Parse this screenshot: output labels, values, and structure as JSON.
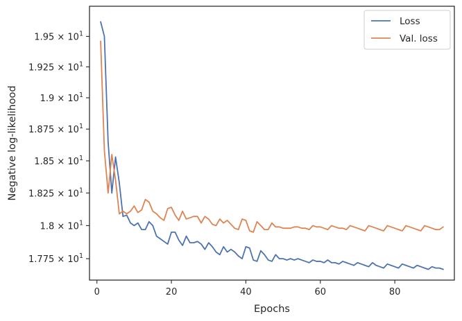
{
  "chart_data": {
    "type": "line",
    "xlabel": "Epochs",
    "ylabel": "Negative log-likelihood",
    "xlim": [
      -2,
      96
    ],
    "ylim": [
      17.59,
      19.75
    ],
    "yscale": "log",
    "grid": false,
    "legend_position": "top-right",
    "x_ticks": [
      {
        "value": 0,
        "label": "0"
      },
      {
        "value": 20,
        "label": "20"
      },
      {
        "value": 40,
        "label": "40"
      },
      {
        "value": 60,
        "label": "60"
      },
      {
        "value": 80,
        "label": "80"
      }
    ],
    "y_ticks": [
      {
        "value": 17.75,
        "mantissa": "1.775"
      },
      {
        "value": 18.0,
        "mantissa": "1.8"
      },
      {
        "value": 18.25,
        "mantissa": "1.825"
      },
      {
        "value": 18.5,
        "mantissa": "1.85"
      },
      {
        "value": 18.75,
        "mantissa": "1.875"
      },
      {
        "value": 19.0,
        "mantissa": "1.9"
      },
      {
        "value": 19.25,
        "mantissa": "1.925"
      },
      {
        "value": 19.5,
        "mantissa": "1.95"
      }
    ],
    "y_tick_base": "10",
    "y_tick_exponent": "1",
    "series": [
      {
        "name": "Loss",
        "color": "#4c72b0",
        "values": [
          19.62,
          19.5,
          18.65,
          18.25,
          18.53,
          18.33,
          18.07,
          18.08,
          18.02,
          18.0,
          18.02,
          17.97,
          17.97,
          18.03,
          18.0,
          17.92,
          17.9,
          17.88,
          17.86,
          17.95,
          17.95,
          17.89,
          17.85,
          17.92,
          17.87,
          17.87,
          17.88,
          17.86,
          17.82,
          17.87,
          17.84,
          17.8,
          17.78,
          17.84,
          17.8,
          17.82,
          17.8,
          17.77,
          17.75,
          17.84,
          17.83,
          17.74,
          17.73,
          17.81,
          17.78,
          17.74,
          17.73,
          17.78,
          17.75,
          17.75,
          17.74,
          17.75,
          17.74,
          17.75,
          17.74,
          17.73,
          17.72,
          17.74,
          17.73,
          17.73,
          17.72,
          17.74,
          17.72,
          17.72,
          17.71,
          17.73,
          17.72,
          17.71,
          17.7,
          17.72,
          17.71,
          17.7,
          17.69,
          17.72,
          17.7,
          17.69,
          17.68,
          17.71,
          17.7,
          17.69,
          17.68,
          17.71,
          17.7,
          17.69,
          17.68,
          17.7,
          17.69,
          17.68,
          17.67,
          17.69,
          17.68,
          17.68,
          17.67
        ]
      },
      {
        "name": "Val. loss",
        "color": "#dd8452",
        "values": [
          19.46,
          18.58,
          18.25,
          18.55,
          18.35,
          18.09,
          18.11,
          18.09,
          18.11,
          18.15,
          18.1,
          18.12,
          18.2,
          18.18,
          18.11,
          18.09,
          18.06,
          18.04,
          18.13,
          18.14,
          18.08,
          18.04,
          18.11,
          18.05,
          18.06,
          18.07,
          18.07,
          18.02,
          18.07,
          18.05,
          18.01,
          18.0,
          18.05,
          18.02,
          18.04,
          18.01,
          17.98,
          17.97,
          18.05,
          18.04,
          17.96,
          17.95,
          18.03,
          18.0,
          17.97,
          17.97,
          18.02,
          17.99,
          17.99,
          17.98,
          17.98,
          17.98,
          17.99,
          17.99,
          17.98,
          17.98,
          17.97,
          18.0,
          17.99,
          17.99,
          17.98,
          17.97,
          18.0,
          17.99,
          17.98,
          17.98,
          17.97,
          18.0,
          17.99,
          17.98,
          17.97,
          17.96,
          18.0,
          17.99,
          17.98,
          17.97,
          17.96,
          18.0,
          17.99,
          17.98,
          17.97,
          17.96,
          18.0,
          17.99,
          17.98,
          17.97,
          17.96,
          18.0,
          17.99,
          17.98,
          17.97,
          17.97,
          17.99
        ]
      }
    ]
  }
}
